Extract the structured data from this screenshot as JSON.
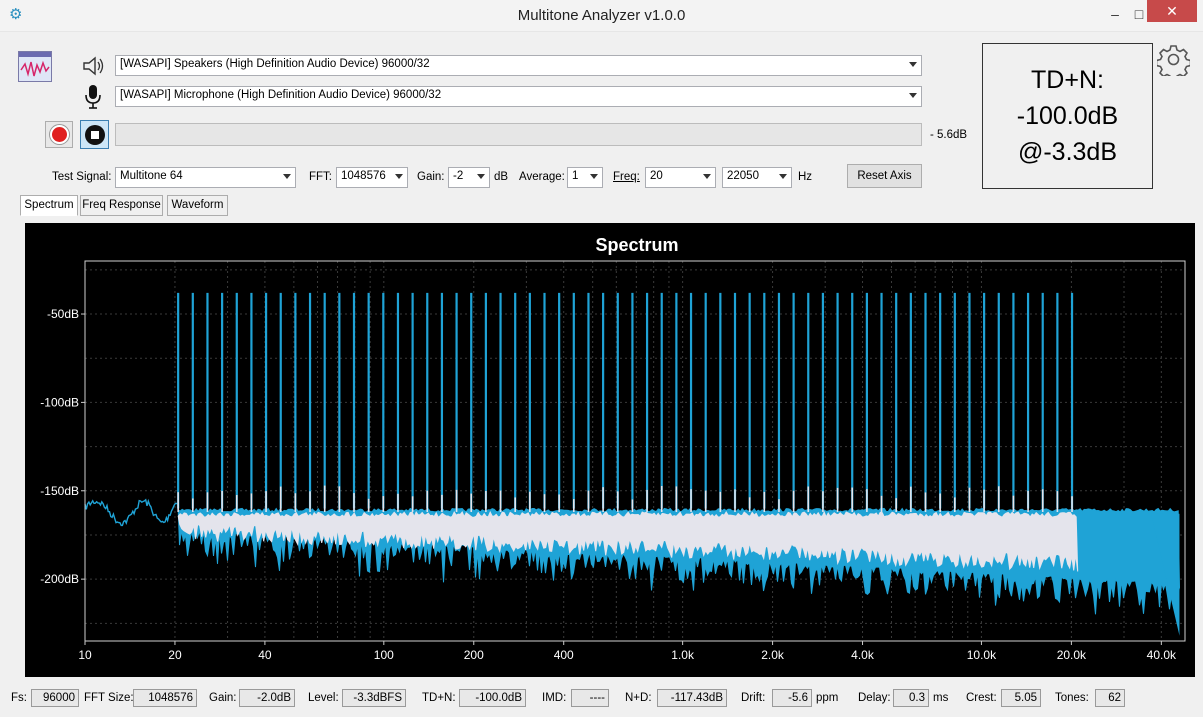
{
  "window": {
    "title": "Multitone Analyzer v1.0.0",
    "minimize": "–",
    "maximize": "□",
    "close": "✕"
  },
  "devices": {
    "output": "[WASAPI] Speakers (High Definition Audio Device) 96000/32",
    "input": "[WASAPI] Microphone (High Definition Audio Device) 96000/32",
    "level_readout": "- 5.6dB",
    "level_fraction": 0.0
  },
  "controls": {
    "test_signal_label": "Test Signal:",
    "test_signal": "Multitone 64",
    "fft_label": "FFT:",
    "fft": "1048576",
    "gain_label": "Gain:",
    "gain": "-2",
    "gain_unit": "dB",
    "average_label": "Average:",
    "average": "1",
    "freq_label": "Freq:",
    "freq_min": "20",
    "freq_max": "22050",
    "freq_unit": "Hz",
    "reset_axis": "Reset Axis"
  },
  "tabs": [
    "Spectrum",
    "Freq Response",
    "Waveform"
  ],
  "tdn": {
    "line1": "TD+N:",
    "line2": "-100.0dB",
    "line3": "@-3.3dB"
  },
  "chart_data": {
    "type": "line",
    "title": "Spectrum",
    "x_scale": "log",
    "xlim": [
      10,
      48000
    ],
    "ylim": [
      -235,
      -20
    ],
    "x_ticks": [
      10,
      20,
      40,
      100,
      200,
      400,
      1000,
      2000,
      4000,
      10000,
      20000,
      40000
    ],
    "x_tick_labels": [
      "10",
      "20",
      "40",
      "100",
      "200",
      "400",
      "1.0k",
      "2.0k",
      "4.0k",
      "10.0k",
      "20.0k",
      "40.0k"
    ],
    "y_ticks": [
      -50,
      -100,
      -150,
      -200
    ],
    "y_tick_labels": [
      "-50dB",
      "-100dB",
      "-150dB",
      "-200dB"
    ],
    "grid": true,
    "series": [
      {
        "color": "#1fa3d6",
        "tone_peak_db": -38,
        "tone_range_hz": [
          20.5,
          20100
        ],
        "tone_count": 62,
        "floor_db": -165,
        "floor_end_hz": 46000
      },
      {
        "color": "#e4e4ec",
        "floor_db": -163,
        "floor_range_hz": [
          20.5,
          21000
        ]
      }
    ]
  },
  "status": {
    "fs_label": "Fs:",
    "fs": "96000",
    "fft_size_label": "FFT Size:",
    "fft_size": "1048576",
    "gain_label": "Gain:",
    "gain": "-2.0dB",
    "level_label": "Level:",
    "level": "-3.3dBFS",
    "tdn_label": "TD+N:",
    "tdn": "-100.0dB",
    "imd_label": "IMD:",
    "imd": "----",
    "nd_label": "N+D:",
    "nd": "-117.43dB",
    "drift_label": "Drift:",
    "drift": "-5.6",
    "drift_unit": "ppm",
    "delay_label": "Delay:",
    "delay": "0.3",
    "delay_unit": "ms",
    "crest_label": "Crest:",
    "crest": "5.05",
    "tones_label": "Tones:",
    "tones": "62"
  }
}
